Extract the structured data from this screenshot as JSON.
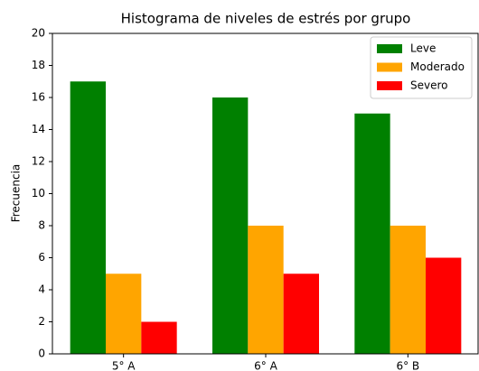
{
  "chart_data": {
    "type": "bar",
    "title": "Histograma de niveles de estrés por grupo",
    "y_label": "Frecuencia",
    "categories": [
      "5° A",
      "6° A",
      "6° B"
    ],
    "series": [
      {
        "name": "Leve",
        "color": "#008000",
        "values": [
          17,
          16,
          15
        ]
      },
      {
        "name": "Moderado",
        "color": "#ffa500",
        "values": [
          5,
          8,
          8
        ]
      },
      {
        "name": "Severo",
        "color": "#ff0000",
        "values": [
          2,
          5,
          6
        ]
      }
    ],
    "ylim": [
      0,
      20
    ],
    "yticks": [
      0,
      2,
      4,
      6,
      8,
      10,
      12,
      14,
      16,
      18,
      20
    ],
    "legend": "upper right"
  }
}
